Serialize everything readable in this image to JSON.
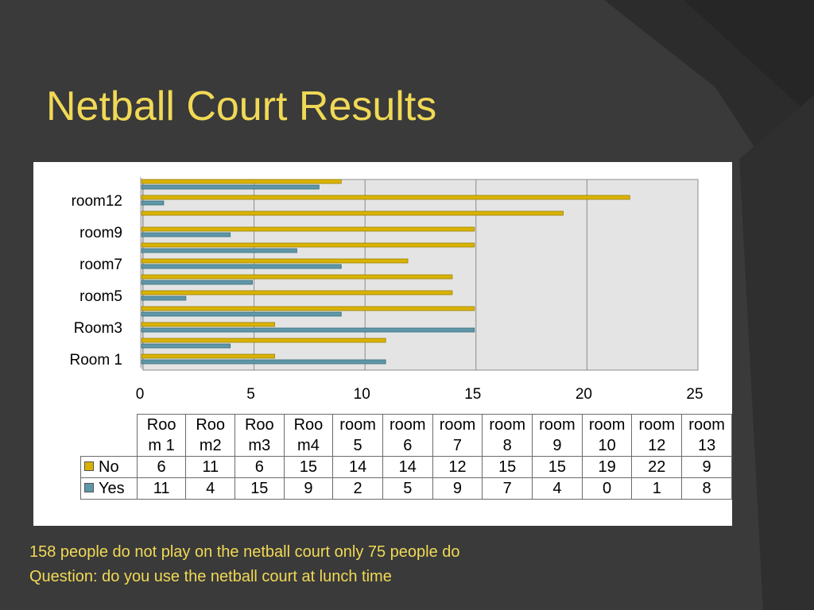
{
  "slide": {
    "title": "Netball Court Results",
    "caption_line1": "158 people do not play on the netball court only  75 people do",
    "caption_line2": "Question: do you use the netball court at lunch time"
  },
  "colors": {
    "no": "#d9b300",
    "yes": "#5e97a8",
    "title": "#f1d956"
  },
  "chart_data": {
    "type": "bar",
    "orientation": "horizontal",
    "categories": [
      "Room 1",
      "Room2",
      "Room3",
      "Room4",
      "room5",
      "room6",
      "room7",
      "room8",
      "room9",
      "room10",
      "room12",
      "room13"
    ],
    "y_tick_labels": [
      "Room 1",
      "Room3",
      "room5",
      "room7",
      "room9",
      "room12"
    ],
    "table_headers": [
      [
        "Roo",
        "m 1"
      ],
      [
        "Roo",
        "m2"
      ],
      [
        "Roo",
        "m3"
      ],
      [
        "Roo",
        "m4"
      ],
      [
        "room",
        "5"
      ],
      [
        "room",
        "6"
      ],
      [
        "room",
        "7"
      ],
      [
        "room",
        "8"
      ],
      [
        "room",
        "9"
      ],
      [
        "room",
        "10"
      ],
      [
        "room",
        "12"
      ],
      [
        "room",
        "13"
      ]
    ],
    "series": [
      {
        "name": "No",
        "values": [
          6,
          11,
          6,
          15,
          14,
          14,
          12,
          15,
          15,
          19,
          22,
          9
        ]
      },
      {
        "name": "Yes",
        "values": [
          11,
          4,
          15,
          9,
          2,
          5,
          9,
          7,
          4,
          0,
          1,
          8
        ]
      }
    ],
    "x_ticks": [
      0,
      5,
      10,
      15,
      20,
      25
    ],
    "xlim": [
      0,
      25
    ],
    "grid": true,
    "legend": "data-table"
  }
}
